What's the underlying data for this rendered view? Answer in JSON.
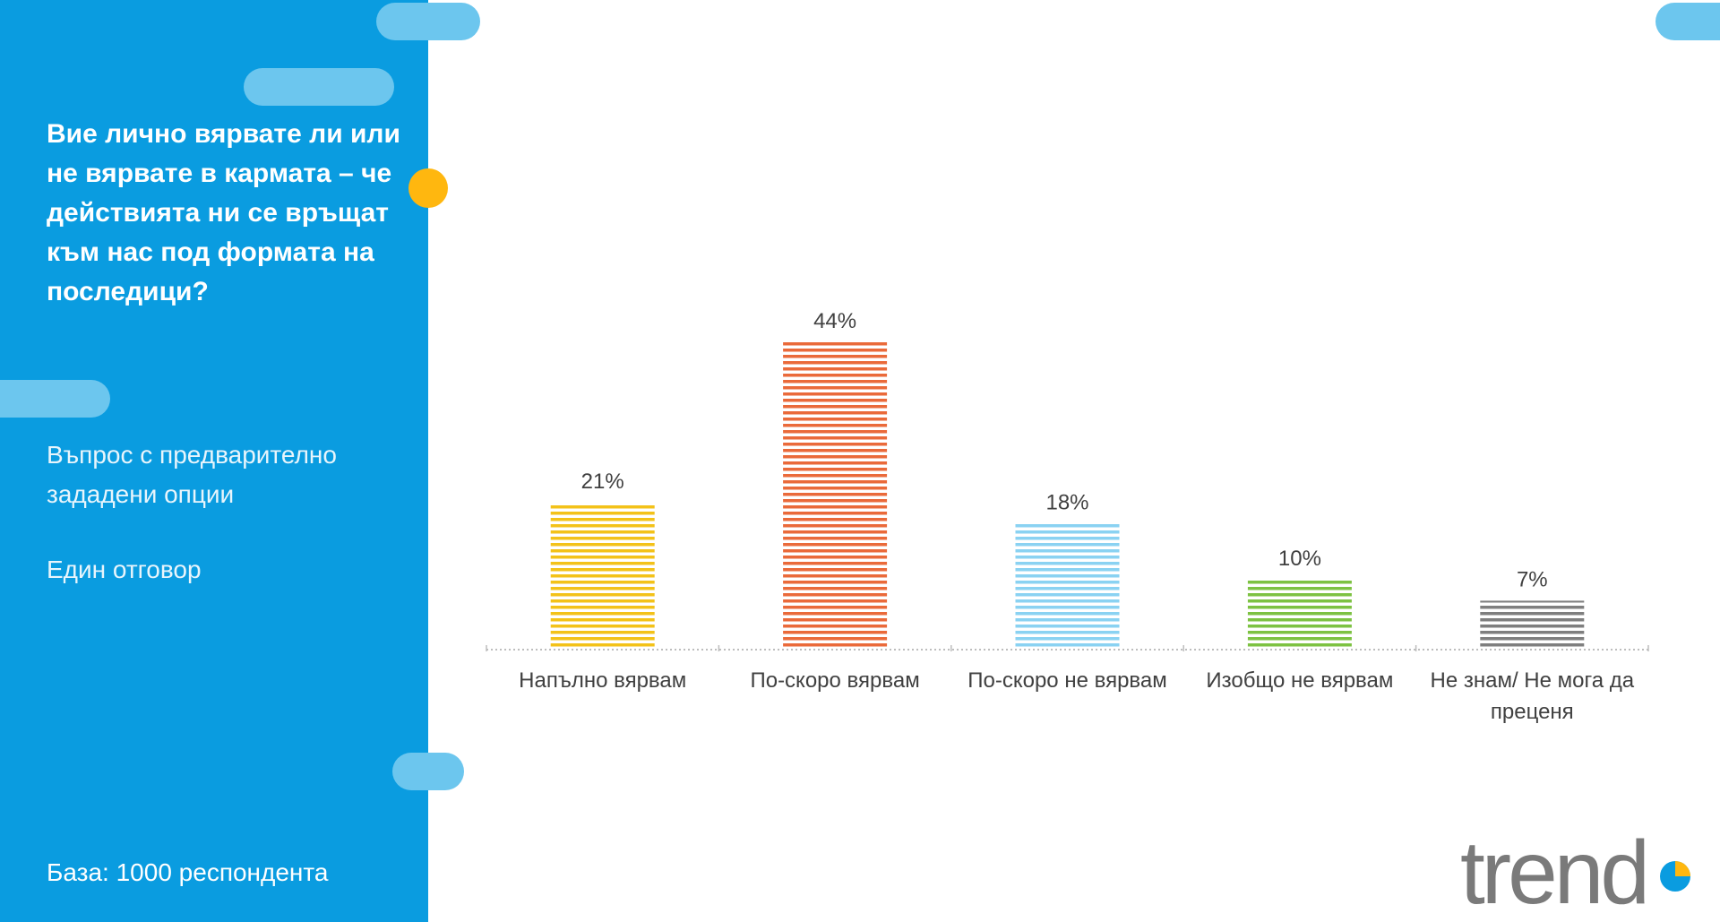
{
  "sidebar": {
    "question": "Вие лично вярвате ли или не вярвате в кармата – че действията ни се връщат към нас под формата на последици?",
    "note_question_type": "Въпрос с предварително зададени опции",
    "note_answer_type": "Един отговор",
    "base": "База:  1000 респондента"
  },
  "colors": {
    "sidebar_bg": "#0a9ce0",
    "pill": "#6cc6ee",
    "accent_dot": "#ffb70f",
    "logo": "#7a7a7a"
  },
  "logo": {
    "text": "trend"
  },
  "chart_data": {
    "type": "bar",
    "categories": [
      "Напълно вярвам",
      "По-скоро вярвам",
      "По-скоро не вярвам",
      "Изобщо не вярвам",
      "Не знам/ Не мога да преценя"
    ],
    "values": [
      21,
      44,
      18,
      10,
      7
    ],
    "value_labels": [
      "21%",
      "44%",
      "18%",
      "10%",
      "7%"
    ],
    "bar_colors": [
      "#f3c219",
      "#ea6a3a",
      "#8ad2f2",
      "#7dc242",
      "#7f7f7f"
    ],
    "ylim": [
      0,
      50
    ],
    "grid": false,
    "legend": "none",
    "bar_fill": "horizontal-stripes"
  }
}
